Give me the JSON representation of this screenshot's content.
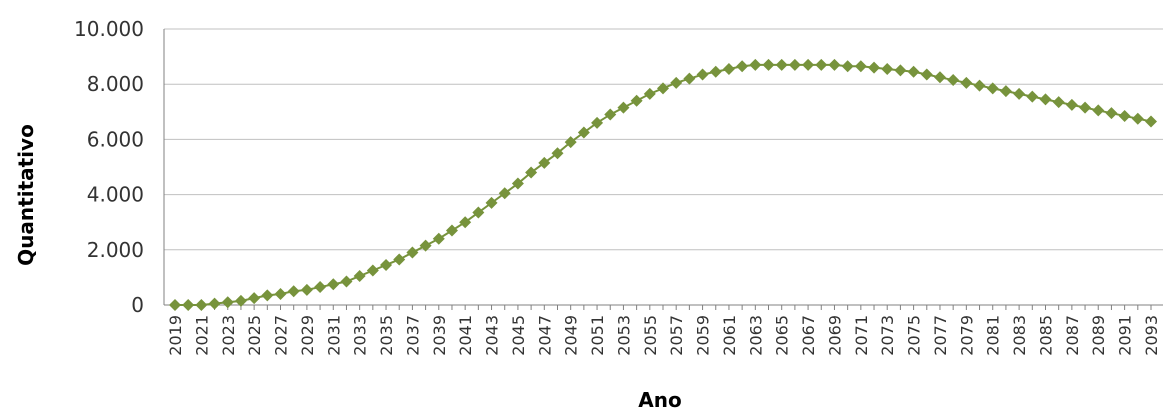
{
  "chart_data": {
    "type": "line",
    "title": "",
    "xlabel": "Ano",
    "ylabel": "Quantitativo",
    "ylim": [
      0,
      10000
    ],
    "yticks": [
      0,
      2000,
      4000,
      6000,
      8000,
      10000
    ],
    "ytick_labels": [
      "0",
      "2.000",
      "4.000",
      "6.000",
      "8.000",
      "10.000"
    ],
    "grid": "horizontal",
    "marker": "diamond",
    "colors": {
      "series": "#77933c",
      "grid": "#c0c0c0",
      "axis": "#808080"
    },
    "x": [
      2019,
      2020,
      2021,
      2022,
      2023,
      2024,
      2025,
      2026,
      2027,
      2028,
      2029,
      2030,
      2031,
      2032,
      2033,
      2034,
      2035,
      2036,
      2037,
      2038,
      2039,
      2040,
      2041,
      2042,
      2043,
      2044,
      2045,
      2046,
      2047,
      2048,
      2049,
      2050,
      2051,
      2052,
      2053,
      2054,
      2055,
      2056,
      2057,
      2058,
      2059,
      2060,
      2061,
      2062,
      2063,
      2064,
      2065,
      2066,
      2067,
      2068,
      2069,
      2070,
      2071,
      2072,
      2073,
      2074,
      2075,
      2076,
      2077,
      2078,
      2079,
      2080,
      2081,
      2082,
      2083,
      2084,
      2085,
      2086,
      2087,
      2088,
      2089,
      2090,
      2091,
      2092,
      2093
    ],
    "xtick_labels": [
      "2019",
      "2021",
      "2023",
      "2025",
      "2027",
      "2029",
      "2031",
      "2033",
      "2035",
      "2037",
      "2039",
      "2041",
      "2043",
      "2045",
      "2047",
      "2049",
      "2051",
      "2053",
      "2055",
      "2057",
      "2059",
      "2061",
      "2063",
      "2065",
      "2067",
      "2069",
      "2071",
      "2073",
      "2075",
      "2077",
      "2079",
      "2081",
      "2083",
      "2085",
      "2087",
      "2089",
      "2091",
      "2093"
    ],
    "series": [
      {
        "values": [
          0,
          0,
          0,
          50,
          100,
          150,
          250,
          350,
          400,
          500,
          550,
          650,
          750,
          850,
          1050,
          1250,
          1450,
          1650,
          1900,
          2150,
          2400,
          2700,
          3000,
          3350,
          3700,
          4050,
          4400,
          4800,
          5150,
          5500,
          5900,
          6250,
          6600,
          6900,
          7150,
          7400,
          7650,
          7850,
          8050,
          8200,
          8350,
          8450,
          8550,
          8650,
          8700,
          8700,
          8700,
          8700,
          8700,
          8700,
          8700,
          8650,
          8650,
          8600,
          8550,
          8500,
          8450,
          8350,
          8250,
          8150,
          8050,
          7950,
          7850,
          7750,
          7650,
          7550,
          7450,
          7350,
          7250,
          7150,
          7050,
          6950,
          6850,
          6750,
          6650
        ]
      }
    ]
  }
}
